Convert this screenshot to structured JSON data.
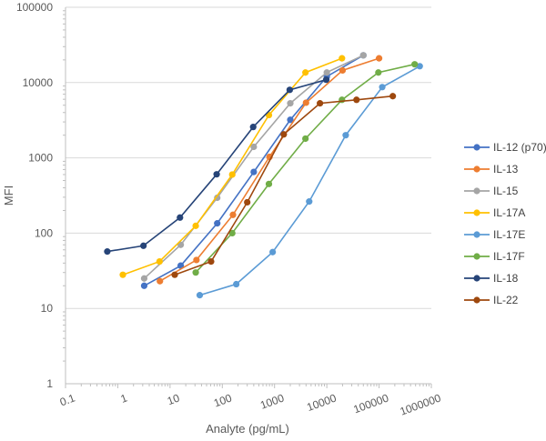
{
  "chart_data": {
    "type": "line",
    "title": "",
    "xlabel": "Analyte (pg/mL)",
    "ylabel": "MFI",
    "xscale": "log",
    "yscale": "log",
    "xlim": [
      0.1,
      1000000
    ],
    "ylim": [
      1,
      100000
    ],
    "xticks": [
      "0.1",
      "1",
      "10",
      "100",
      "1000",
      "10000",
      "100000",
      "1000000"
    ],
    "yticks": [
      "1",
      "10",
      "100",
      "1000",
      "10000",
      "100000"
    ],
    "grid": "horizontal",
    "legend": "right",
    "series": [
      {
        "name": "IL-12 (p70)",
        "color": "#4472C4",
        "x": [
          3.2,
          16,
          80,
          400,
          2000,
          10000,
          50000
        ],
        "y": [
          20,
          37,
          135,
          650,
          3200,
          12000,
          23000
        ]
      },
      {
        "name": "IL-13",
        "color": "#ED7D31",
        "x": [
          6.4,
          32,
          160,
          800,
          4000,
          20000,
          100000
        ],
        "y": [
          23,
          44,
          175,
          1030,
          5400,
          14500,
          21000
        ]
      },
      {
        "name": "IL-15",
        "color": "#A5A5A5",
        "x": [
          3.2,
          16,
          80,
          400,
          2000,
          10000,
          50000
        ],
        "y": [
          25,
          70,
          295,
          1400,
          5300,
          13600,
          23000
        ]
      },
      {
        "name": "IL-17A",
        "color": "#FFC000",
        "x": [
          1.25,
          6.3,
          31,
          155,
          780,
          3900,
          19500
        ],
        "y": [
          28,
          42,
          125,
          600,
          3700,
          13600,
          21000
        ]
      },
      {
        "name": "IL-17E",
        "color": "#5B9BD5",
        "x": [
          37,
          185,
          920,
          4600,
          23000,
          115000,
          600000
        ],
        "y": [
          15,
          21,
          56,
          263,
          2000,
          8700,
          16500
        ]
      },
      {
        "name": "IL-17F",
        "color": "#70AD47",
        "x": [
          31,
          155,
          780,
          3900,
          19500,
          97000,
          480000
        ],
        "y": [
          30,
          100,
          450,
          1800,
          5900,
          13600,
          17500
        ]
      },
      {
        "name": "IL-18",
        "color": "#264478",
        "x": [
          0.63,
          3.1,
          15.5,
          78,
          390,
          1950,
          9750
        ],
        "y": [
          57,
          68,
          161,
          605,
          2570,
          8000,
          10900
        ]
      },
      {
        "name": "IL-22",
        "color": "#9E480E",
        "x": [
          12.3,
          61,
          300,
          1500,
          7400,
          37000,
          183000
        ],
        "y": [
          28,
          42,
          257,
          2050,
          5300,
          5900,
          6600
        ]
      }
    ]
  }
}
